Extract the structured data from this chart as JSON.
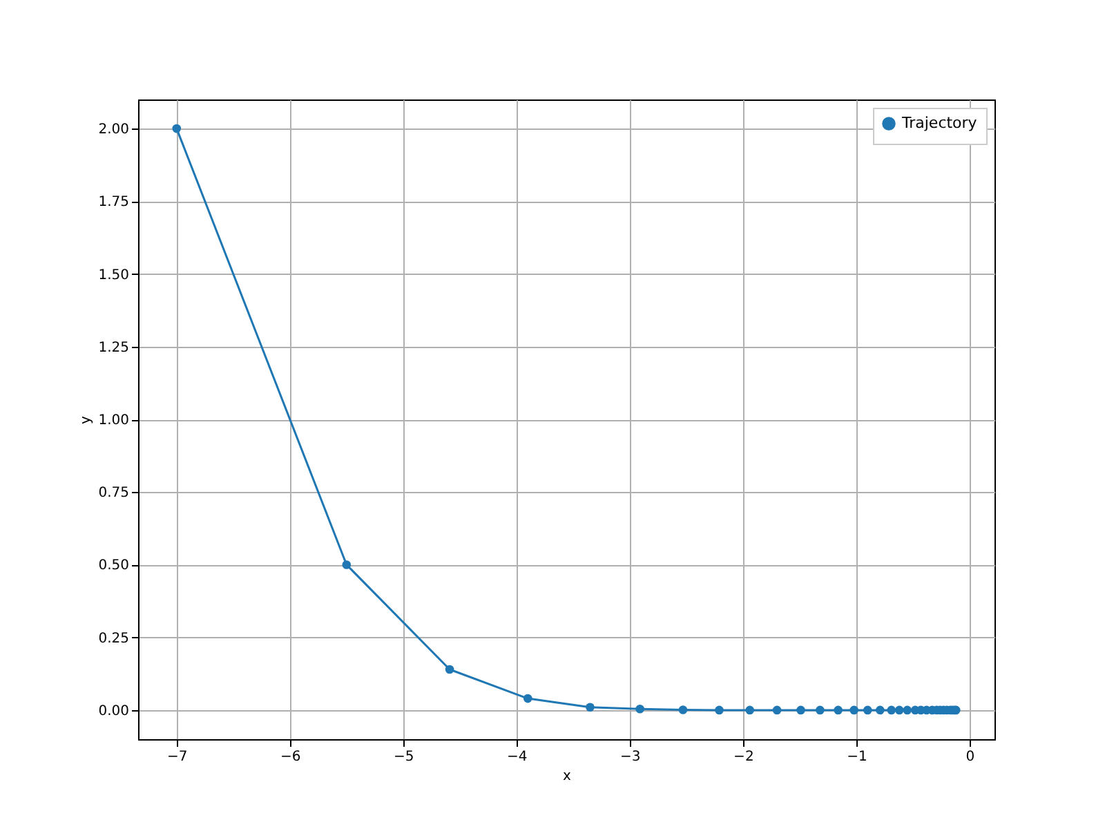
{
  "chart_data": {
    "type": "line",
    "xlabel": "x",
    "ylabel": "y",
    "x": [
      -7,
      -5.5,
      -4.59,
      -3.9,
      -3.35,
      -2.91,
      -2.53,
      -2.21,
      -1.94,
      -1.7,
      -1.49,
      -1.32,
      -1.16,
      -1.02,
      -0.9,
      -0.79,
      -0.69,
      -0.62,
      -0.55,
      -0.48,
      -0.43,
      -0.38,
      -0.33,
      -0.29,
      -0.26,
      -0.23,
      -0.2,
      -0.17,
      -0.15,
      -0.13,
      -0.12
    ],
    "series": [
      {
        "name": "Trajectory",
        "color": "#1f77b4",
        "values": [
          2,
          0.5,
          0.14,
          0.04,
          0.01,
          0.004,
          0.001,
          0,
          0,
          0,
          0,
          0,
          0,
          0,
          0,
          0,
          0,
          0,
          0,
          0,
          0,
          0,
          0,
          0,
          0,
          0,
          0,
          0,
          0,
          0,
          0
        ]
      }
    ],
    "xlim": [
      -7.34,
      0.22
    ],
    "ylim": [
      -0.1,
      2.1
    ],
    "xticks": [
      {
        "value": -7,
        "label": "−7"
      },
      {
        "value": -6,
        "label": "−6"
      },
      {
        "value": -5,
        "label": "−5"
      },
      {
        "value": -4,
        "label": "−4"
      },
      {
        "value": -3,
        "label": "−3"
      },
      {
        "value": -2,
        "label": "−2"
      },
      {
        "value": -1,
        "label": "−1"
      },
      0
    ],
    "yticks": [
      {
        "value": 0,
        "label": "0.00"
      },
      0.25,
      {
        "value": 0.5,
        "label": "0.50"
      },
      0.75,
      {
        "value": 1,
        "label": "1.00"
      },
      1.25,
      {
        "value": 1.5,
        "label": "1.50"
      },
      1.75,
      {
        "value": 2,
        "label": "2.00"
      }
    ],
    "grid": true,
    "legend": "top right",
    "marker": "circle",
    "line_style": "solid"
  }
}
